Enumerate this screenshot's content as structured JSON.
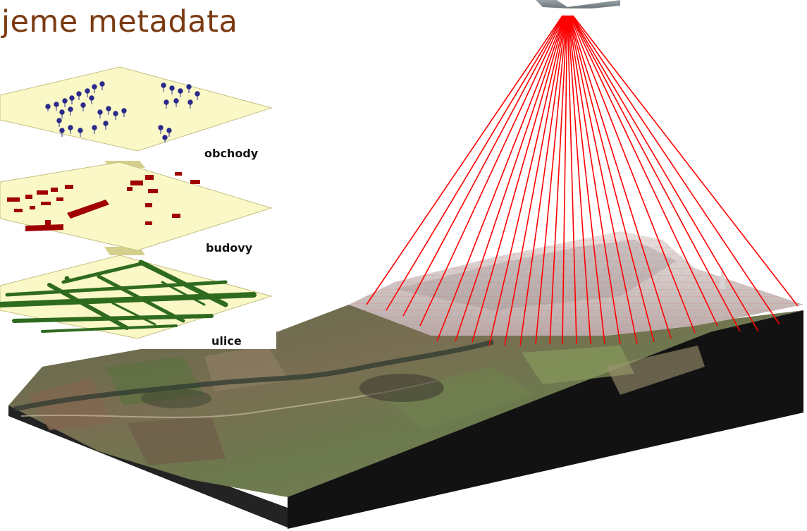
{
  "slide": {
    "title": "jeme metadata"
  },
  "layers": [
    {
      "label": "obchody",
      "kind": "points"
    },
    {
      "label": "budovy",
      "kind": "polygons"
    },
    {
      "label": "ulice",
      "kind": "lines"
    }
  ],
  "illustration": {
    "sensor": "satellite-icon",
    "terrain": "terrain-block"
  },
  "colors": {
    "title": "#7b3a12",
    "layer_fill": "#fbf8c8",
    "connector": "#d4cf8a",
    "points": "#2a2a8a",
    "buildings": "#a00000",
    "streets": "#2f6b1f",
    "rays": "#ff0000",
    "terrain_side": "#111111"
  }
}
